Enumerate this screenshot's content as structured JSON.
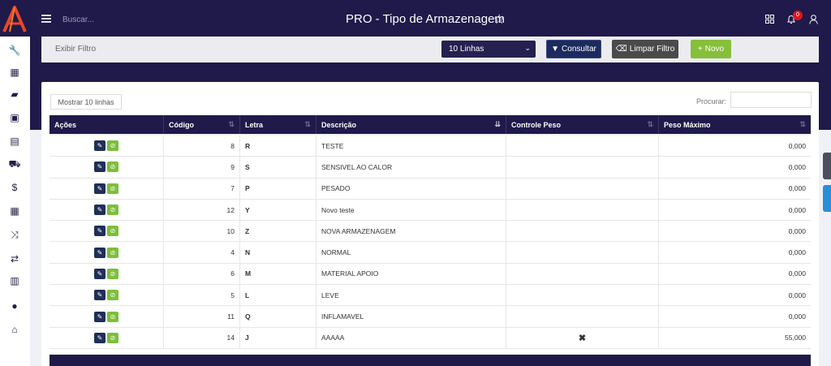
{
  "header": {
    "search_placeholder": "Buscar...",
    "title": "PRO - Tipo de Armazenagem",
    "notification_count": "0",
    "colors": {
      "bar": "#1f1a4a",
      "badge": "#e0151f"
    }
  },
  "sidebar": {
    "icons": [
      "wrench-icon",
      "calculator-icon",
      "book-icon",
      "money-icon",
      "briefcase-icon",
      "cart-icon",
      "dollar-icon",
      "table-icon",
      "shuffle-icon",
      "retweet-icon",
      "basket-icon",
      "user-icon",
      "home-icon"
    ]
  },
  "filter": {
    "label": "Exibir Filtro",
    "lines_select": "10 Linhas",
    "consultar_label": "Consultar",
    "limpar_label": "Limpar Filtro",
    "novo_label": "Novo"
  },
  "table": {
    "show_lines_label": "Mostrar 10 linhas",
    "search_label": "Procurar:",
    "headers": [
      "Ações",
      "Código",
      "Letra",
      "Descrição",
      "Controle Peso",
      "Peso Máximo"
    ],
    "rows": [
      {
        "codigo": "8",
        "letra": "R",
        "descricao": "TESTE",
        "controle": "",
        "peso": "0,000"
      },
      {
        "codigo": "9",
        "letra": "S",
        "descricao": "SENSIVEL AO CALOR",
        "controle": "",
        "peso": "0,000"
      },
      {
        "codigo": "7",
        "letra": "P",
        "descricao": "PESADO",
        "controle": "",
        "peso": "0,000"
      },
      {
        "codigo": "12",
        "letra": "Y",
        "descricao": "Novo teste",
        "controle": "",
        "peso": "0,000"
      },
      {
        "codigo": "10",
        "letra": "Z",
        "descricao": "NOVA ARMAZENAGEM",
        "controle": "",
        "peso": "0,000"
      },
      {
        "codigo": "4",
        "letra": "N",
        "descricao": "NORMAL",
        "controle": "",
        "peso": "0,000"
      },
      {
        "codigo": "6",
        "letra": "M",
        "descricao": "MATERIAL APOIO",
        "controle": "",
        "peso": "0,000"
      },
      {
        "codigo": "5",
        "letra": "L",
        "descricao": "LEVE",
        "controle": "",
        "peso": "0,000"
      },
      {
        "codigo": "11",
        "letra": "Q",
        "descricao": "INFLAMAVEL",
        "controle": "",
        "peso": "0,000"
      },
      {
        "codigo": "14",
        "letra": "J",
        "descricao": "AAAAA",
        "controle": "✖",
        "peso": "55,000"
      }
    ]
  }
}
